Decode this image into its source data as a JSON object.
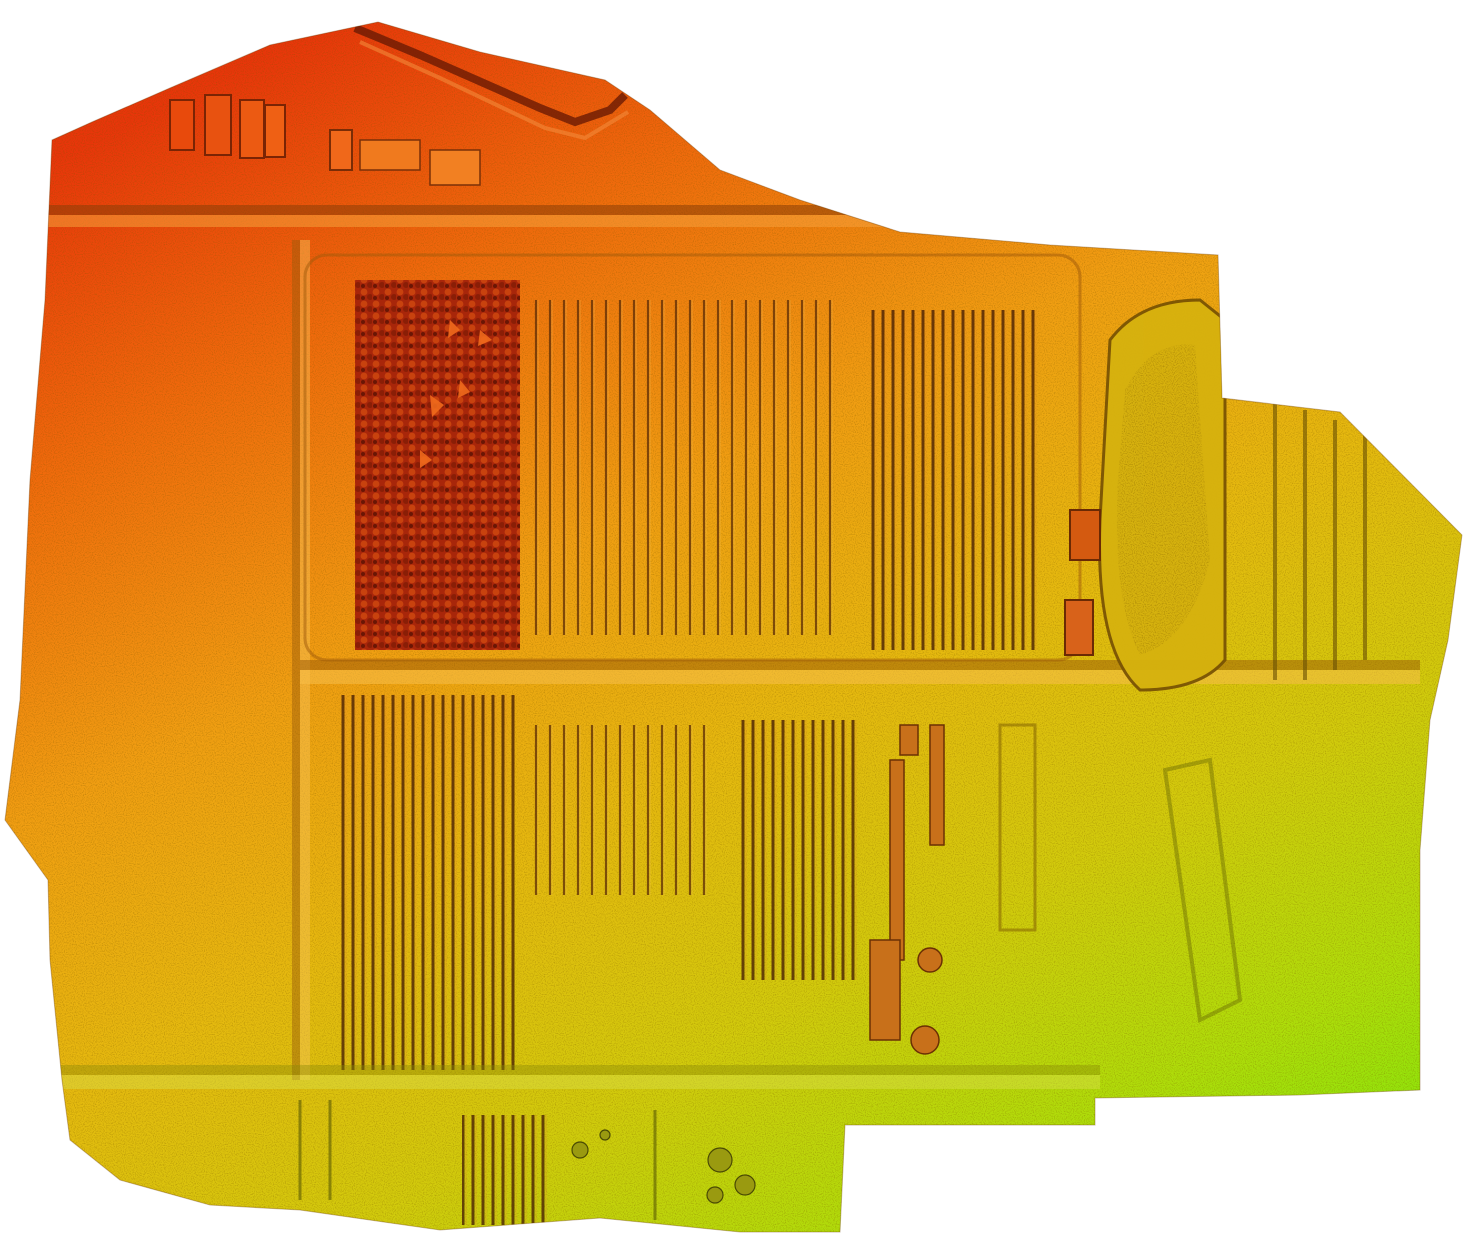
{
  "map": {
    "type": "elevation-hillshade-orthomosaic",
    "color_ramp": [
      "#e8360a",
      "#f06a0c",
      "#f59a10",
      "#e8b80e",
      "#d4c80c",
      "#b8dc0a",
      "#8ee80a"
    ],
    "background": "#ffffff",
    "features": [
      "building-cluster-north",
      "road-north-diagonal",
      "road-horizontal-upper",
      "road-horizontal-middle",
      "road-horizontal-lower",
      "road-vertical-west",
      "field-orchard-dark",
      "field-rows-center",
      "field-rows-east",
      "pond-east",
      "field-rows-south-a",
      "field-rows-south-b",
      "field-rows-south-c",
      "tree-line-south",
      "field-rows-bottom"
    ]
  }
}
